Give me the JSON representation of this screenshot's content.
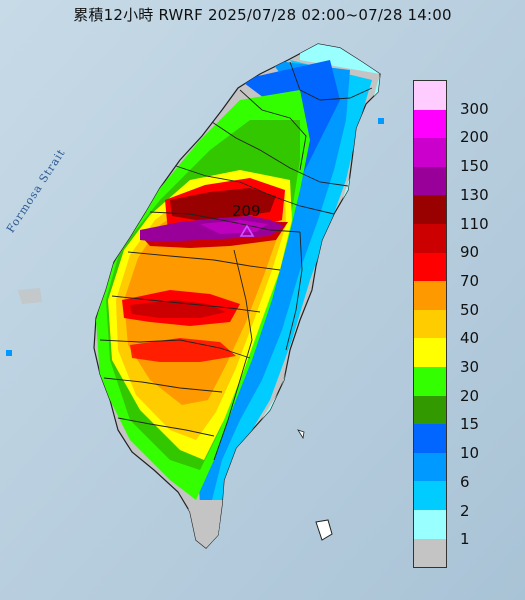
{
  "title": "累積12小時 RWRF 2025/07/28 02:00~07/28 14:00",
  "strait_label": "Formosa Strait",
  "max_marker": {
    "value": "209",
    "icon": "triangle-icon",
    "color": "#cc55ff"
  },
  "colors": {
    "sea": "#b9d0df",
    "land_gray": "#c4c4c4",
    "border": "#333333"
  },
  "legend": {
    "bands": [
      {
        "label": "300",
        "color": "#ffccff"
      },
      {
        "label": "200",
        "color": "#ff00ff"
      },
      {
        "label": "150",
        "color": "#cc00cc"
      },
      {
        "label": "130",
        "color": "#990099"
      },
      {
        "label": "110",
        "color": "#990000"
      },
      {
        "label": "90",
        "color": "#cc0000"
      },
      {
        "label": "70",
        "color": "#ff0000"
      },
      {
        "label": "50",
        "color": "#ff9900"
      },
      {
        "label": "40",
        "color": "#ffcc00"
      },
      {
        "label": "30",
        "color": "#ffff00"
      },
      {
        "label": "20",
        "color": "#33ff00"
      },
      {
        "label": "15",
        "color": "#339900"
      },
      {
        "label": "10",
        "color": "#0066ff"
      },
      {
        "label": "6",
        "color": "#0099ff"
      },
      {
        "label": "2",
        "color": "#00ccff"
      },
      {
        "label": "1",
        "color": "#99ffff"
      },
      {
        "label": "",
        "color": "#c4c4c4"
      }
    ]
  }
}
